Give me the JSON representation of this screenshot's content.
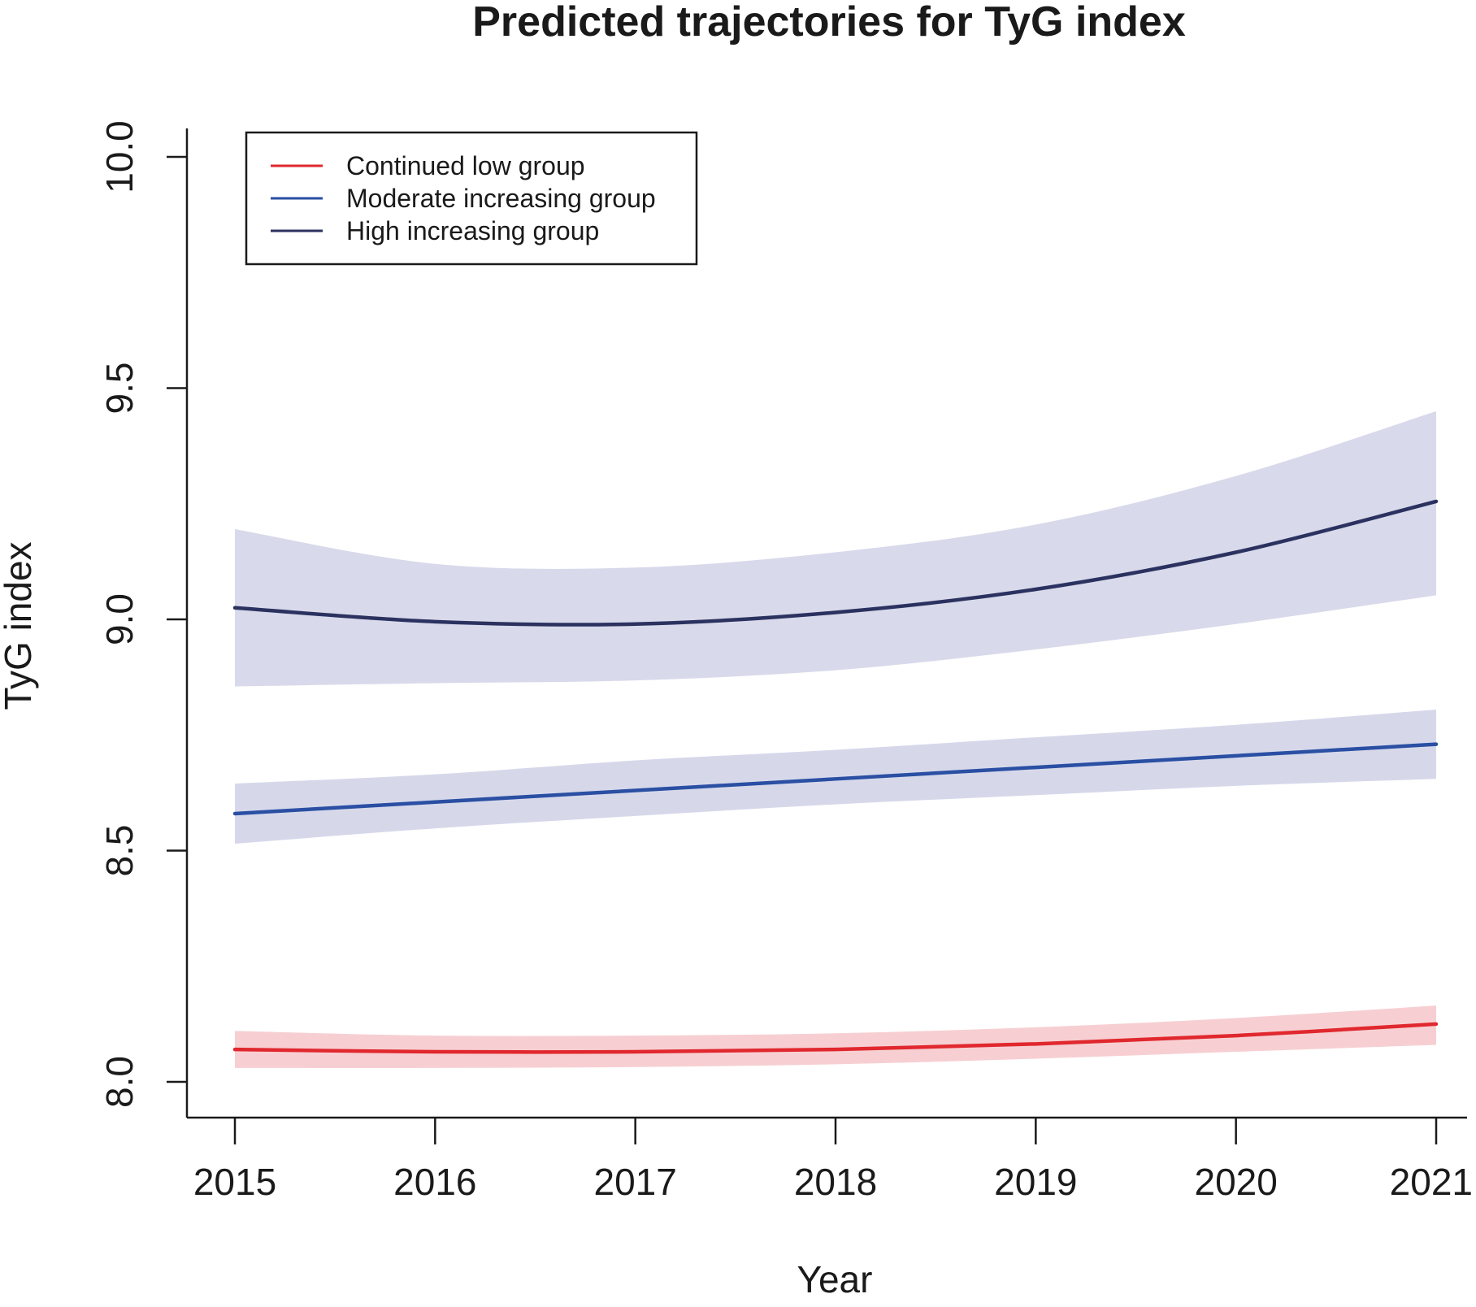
{
  "chart_data": {
    "type": "line",
    "title": "Predicted trajectories for TyG index",
    "xlabel": "Year",
    "ylabel": "TyG index",
    "xlim": [
      2015,
      2021
    ],
    "ylim": [
      8.0,
      10.0
    ],
    "x": [
      2015,
      2016,
      2017,
      2018,
      2019,
      2020,
      2021
    ],
    "x_tick_labels": [
      "2015",
      "2016",
      "2017",
      "2018",
      "2019",
      "2020",
      "2021"
    ],
    "y_ticks": [
      8.0,
      8.5,
      9.0,
      9.5,
      10.0
    ],
    "y_tick_labels": [
      "8.0",
      "8.5",
      "9.0",
      "9.5",
      "10.0"
    ],
    "legend_position": "top-left",
    "grid": false,
    "series": [
      {
        "name": "Continued low group",
        "color": "#e0282e",
        "band_color": "#f7cfd2",
        "values": [
          8.07,
          8.065,
          8.065,
          8.07,
          8.082,
          8.1,
          8.125
        ],
        "lower": [
          8.03,
          8.03,
          8.032,
          8.038,
          8.05,
          8.065,
          8.08
        ],
        "upper": [
          8.11,
          8.1,
          8.1,
          8.105,
          8.118,
          8.138,
          8.165
        ]
      },
      {
        "name": "Moderate increasing group",
        "color": "#2a4fa3",
        "band_color": "#d6d8ea",
        "values": [
          8.58,
          8.605,
          8.63,
          8.655,
          8.68,
          8.705,
          8.73
        ],
        "lower": [
          8.515,
          8.548,
          8.575,
          8.6,
          8.62,
          8.64,
          8.655
        ],
        "upper": [
          8.645,
          8.665,
          8.695,
          8.718,
          8.745,
          8.772,
          8.805
        ]
      },
      {
        "name": "High increasing group",
        "color": "#2b3260",
        "band_color": "#d8d9ea",
        "values": [
          9.025,
          8.995,
          8.99,
          9.015,
          9.065,
          9.145,
          9.255
        ],
        "lower": [
          8.855,
          8.862,
          8.868,
          8.89,
          8.935,
          8.99,
          9.052
        ],
        "upper": [
          9.195,
          9.12,
          9.112,
          9.145,
          9.205,
          9.31,
          9.45
        ]
      }
    ]
  }
}
